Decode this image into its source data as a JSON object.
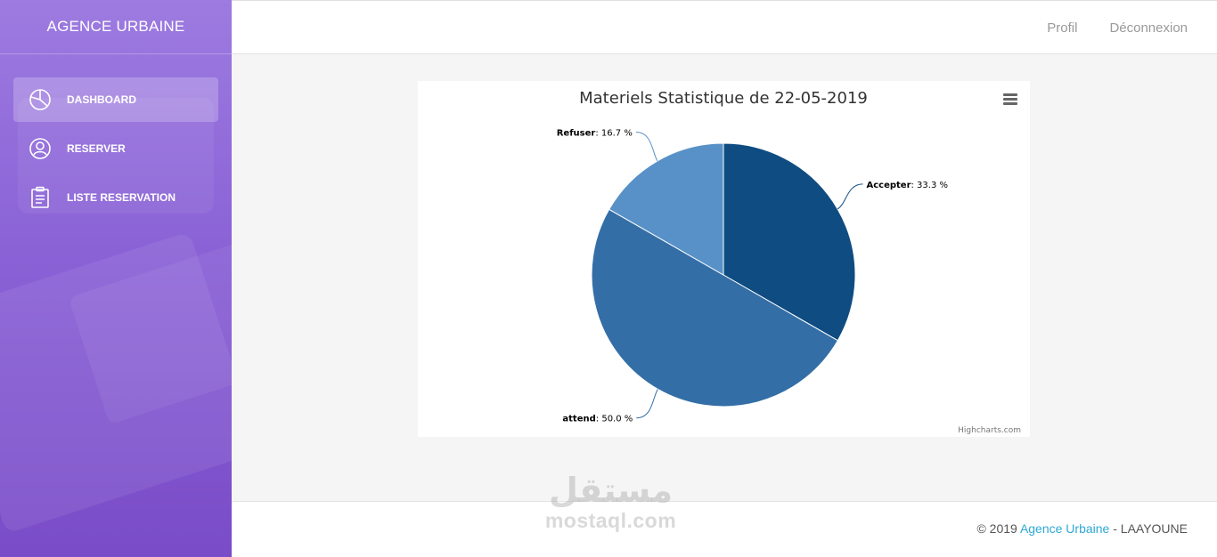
{
  "sidebar": {
    "brand": "AGENCE URBAINE",
    "items": [
      {
        "label": "DASHBOARD",
        "icon": "pie-chart-icon",
        "active": true
      },
      {
        "label": "RESERVER",
        "icon": "user-icon",
        "active": false
      },
      {
        "label": "LISTE RESERVATION",
        "icon": "clipboard-icon",
        "active": false
      }
    ]
  },
  "topbar": {
    "profile_label": "Profil",
    "logout_label": "Déconnexion"
  },
  "chart_data": {
    "type": "pie",
    "title": "Materiels Statistique de 22-05-2019",
    "credits": "Highcharts.com",
    "slices": [
      {
        "name": "Accepter",
        "value": 33.3,
        "label": "33.3 %",
        "color": "#0f4c81"
      },
      {
        "name": "attend",
        "value": 50.0,
        "label": "50.0 %",
        "color": "#346ea6"
      },
      {
        "name": "Refuser",
        "value": 16.7,
        "label": "16.7 %",
        "color": "#5891c8"
      }
    ]
  },
  "footer": {
    "prefix": "© 2019 ",
    "brand": "Agence Urbaine",
    "suffix": " - LAAYOUNE"
  },
  "watermark": {
    "arabic": "مستقل",
    "latin": "mostaql.com"
  }
}
